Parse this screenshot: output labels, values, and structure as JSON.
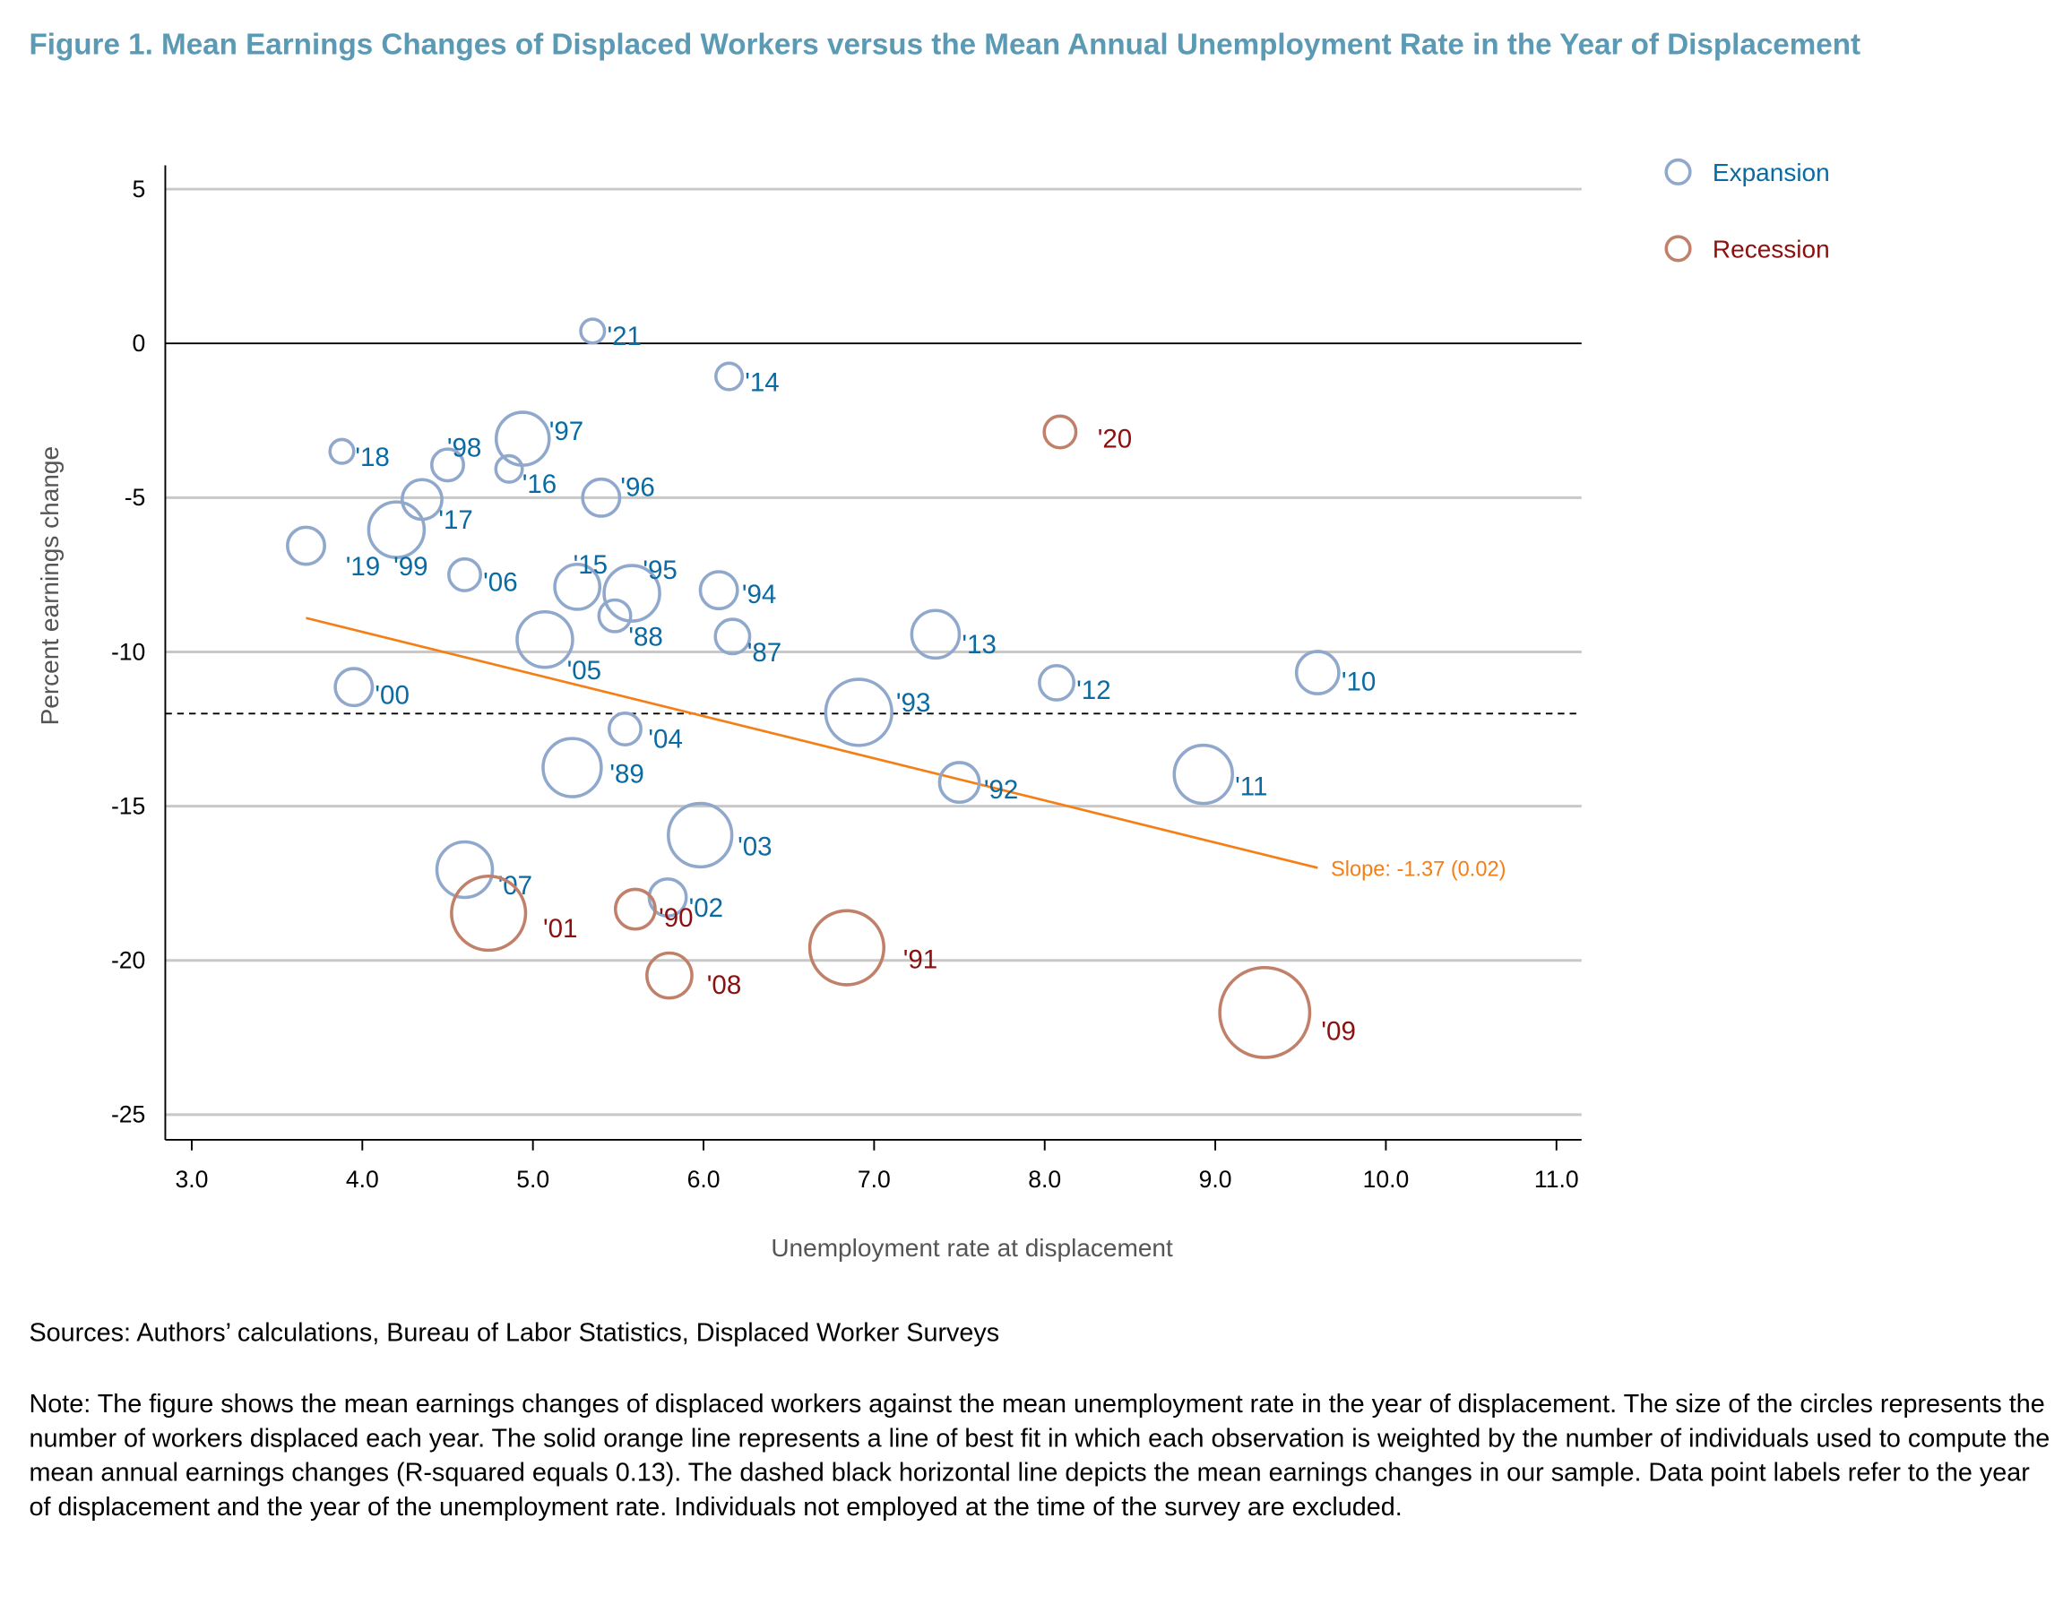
{
  "title": "Figure 1. Mean Earnings Changes of Displaced Workers versus the Mean Annual Unemployment Rate in the Year of Displacement",
  "sources": "Sources: Authors’ calculations, Bureau of Labor Statistics, Displaced Worker Surveys",
  "note": "Note: The figure shows the mean earnings changes of displaced workers against the mean unemployment rate in the year of displacement. The size of the circles represents the number of workers displaced each year. The solid orange line represents a line of best fit in which each observation is weighted by the number of individuals used to compute the mean annual earnings changes (R-squared equals 0.13). The dashed black horizontal line depicts the mean earnings changes in our sample. Data point labels refer to the year of displacement and the year of the unemployment rate. Individuals not employed at the time of the survey are excluded.",
  "colors": {
    "title": "#5b9ab5",
    "expansion_marker": "#8fa8cc",
    "expansion_label": "#0a6aa1",
    "recession_marker": "#c0806a",
    "recession_label": "#8b1010",
    "fit_line": "#f57f17",
    "grid": "#c8c8c8"
  },
  "chart_data": {
    "type": "scatter",
    "xlabel": "Unemployment rate at displacement",
    "ylabel": "Percent earnings change",
    "xlim": [
      2.9,
      11.2
    ],
    "ylim": [
      -26,
      5.8
    ],
    "xticks": [
      "3.0",
      "4.0",
      "5.0",
      "6.0",
      "7.0",
      "8.0",
      "9.0",
      "10.0",
      "11.0"
    ],
    "yticks": [
      "5",
      "0",
      "-5",
      "-10",
      "-15",
      "-20",
      "-25"
    ],
    "grid": "horizontal",
    "legend_placement": "top-right",
    "legend": [
      {
        "name": "Expansion",
        "group": "expansion"
      },
      {
        "name": "Recession",
        "group": "recession"
      }
    ],
    "mean_line": {
      "y": -12.0,
      "style": "dashed"
    },
    "fit_line": {
      "x": [
        3.67,
        9.6
      ],
      "y": [
        -8.9,
        -17.0
      ],
      "label": "Slope: -1.37 (0.02)"
    },
    "size_note": "circle size = relative number of displaced workers",
    "points": [
      {
        "label": "'21",
        "x": 5.35,
        "y": 0.4,
        "size": 9,
        "group": "expansion"
      },
      {
        "label": "'14",
        "x": 6.15,
        "y": -1.07,
        "size": 10,
        "group": "expansion"
      },
      {
        "label": "'20",
        "x": 8.09,
        "y": -2.87,
        "size": 12,
        "group": "recession"
      },
      {
        "label": "'18",
        "x": 3.88,
        "y": -3.5,
        "size": 9,
        "group": "expansion"
      },
      {
        "label": "'98",
        "x": 4.5,
        "y": -3.94,
        "size": 12,
        "group": "expansion"
      },
      {
        "label": "'97",
        "x": 4.94,
        "y": -3.09,
        "size": 20,
        "group": "expansion"
      },
      {
        "label": "'16",
        "x": 4.86,
        "y": -4.07,
        "size": 10,
        "group": "expansion"
      },
      {
        "label": "'17",
        "x": 4.35,
        "y": -5.06,
        "size": 15,
        "group": "expansion"
      },
      {
        "label": "'96",
        "x": 5.4,
        "y": -5.0,
        "size": 14,
        "group": "expansion"
      },
      {
        "label": "'99",
        "x": 4.2,
        "y": -6.04,
        "size": 21,
        "group": "expansion"
      },
      {
        "label": "'19",
        "x": 3.67,
        "y": -6.56,
        "size": 14,
        "group": "expansion"
      },
      {
        "label": "'06",
        "x": 4.6,
        "y": -7.5,
        "size": 12,
        "group": "expansion"
      },
      {
        "label": "'15",
        "x": 5.26,
        "y": -7.89,
        "size": 17,
        "group": "expansion"
      },
      {
        "label": "'95",
        "x": 5.58,
        "y": -8.1,
        "size": 21,
        "group": "expansion"
      },
      {
        "label": "'88",
        "x": 5.48,
        "y": -8.83,
        "size": 12,
        "group": "expansion"
      },
      {
        "label": "'94",
        "x": 6.09,
        "y": -8.0,
        "size": 14,
        "group": "expansion"
      },
      {
        "label": "'87",
        "x": 6.17,
        "y": -9.5,
        "size": 13,
        "group": "expansion"
      },
      {
        "label": "'05",
        "x": 5.07,
        "y": -9.6,
        "size": 21,
        "group": "expansion"
      },
      {
        "label": "'13",
        "x": 7.36,
        "y": -9.43,
        "size": 18,
        "group": "expansion"
      },
      {
        "label": "'00",
        "x": 3.95,
        "y": -11.14,
        "size": 14,
        "group": "expansion"
      },
      {
        "label": "'12",
        "x": 8.07,
        "y": -11.0,
        "size": 13,
        "group": "expansion"
      },
      {
        "label": "'10",
        "x": 9.6,
        "y": -10.67,
        "size": 16,
        "group": "expansion"
      },
      {
        "label": "'93",
        "x": 6.91,
        "y": -11.96,
        "size": 25,
        "group": "expansion"
      },
      {
        "label": "'04",
        "x": 5.54,
        "y": -12.5,
        "size": 12,
        "group": "expansion"
      },
      {
        "label": "'89",
        "x": 5.23,
        "y": -13.75,
        "size": 22,
        "group": "expansion"
      },
      {
        "label": "'92",
        "x": 7.5,
        "y": -14.23,
        "size": 15,
        "group": "expansion"
      },
      {
        "label": "'11",
        "x": 8.93,
        "y": -13.97,
        "size": 22,
        "group": "expansion"
      },
      {
        "label": "'03",
        "x": 5.98,
        "y": -15.94,
        "size": 24,
        "group": "expansion"
      },
      {
        "label": "'07",
        "x": 4.6,
        "y": -17.06,
        "size": 21,
        "group": "expansion"
      },
      {
        "label": "'02",
        "x": 5.79,
        "y": -17.96,
        "size": 14,
        "group": "expansion"
      },
      {
        "label": "'01",
        "x": 4.74,
        "y": -18.47,
        "size": 28,
        "group": "recession"
      },
      {
        "label": "'90",
        "x": 5.6,
        "y": -18.34,
        "size": 15,
        "group": "recession"
      },
      {
        "label": "'91",
        "x": 6.84,
        "y": -19.59,
        "size": 28,
        "group": "recession"
      },
      {
        "label": "'08",
        "x": 5.8,
        "y": -20.49,
        "size": 17,
        "group": "recession"
      },
      {
        "label": "'09",
        "x": 9.29,
        "y": -21.69,
        "size": 34,
        "group": "recession"
      }
    ]
  }
}
